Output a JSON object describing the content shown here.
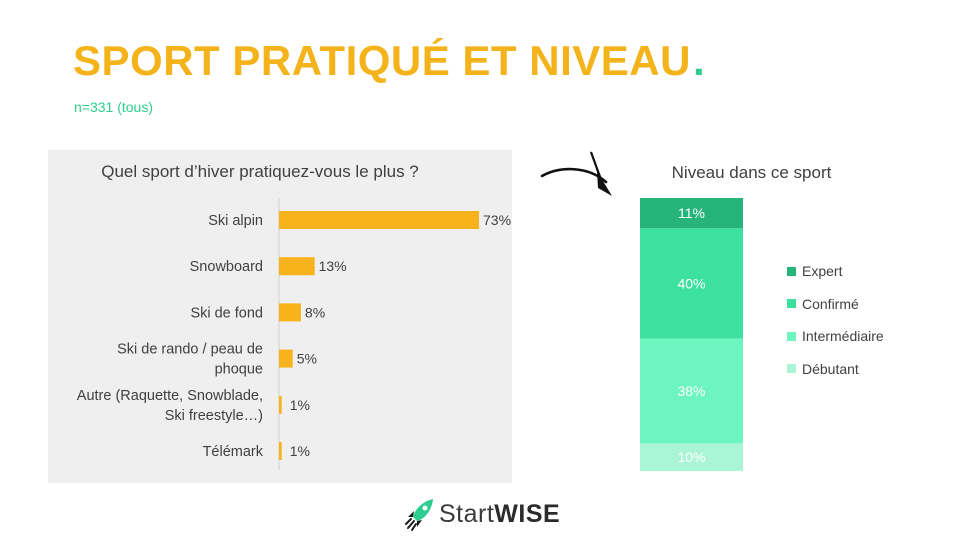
{
  "header": {
    "title": "SPORT PRATIQUÉ ET NIVEAU",
    "title_dot": ".",
    "subtitle": "n=331 (tous)"
  },
  "colors": {
    "accent_yellow": "#f5b31b",
    "accent_green": "#2ecc8f",
    "bar": "#f8b21c",
    "expert": "#27b47b",
    "confirme": "#3de19f",
    "intermediaire": "#6df5bf",
    "debutant": "#aaf5d6"
  },
  "logo": {
    "icon": "rocket-icon",
    "text_light": "Start",
    "text_bold": "WISE"
  },
  "decorations": {
    "arrow": "curved-arrow-icon"
  },
  "chart_data": [
    {
      "type": "bar",
      "orientation": "horizontal",
      "title": "Quel sport d’hiver pratiquez-vous le plus ?",
      "categories": [
        [
          "Ski alpin"
        ],
        [
          "Snowboard"
        ],
        [
          "Ski de fond"
        ],
        [
          "Ski de rando / peau de",
          "phoque"
        ],
        [
          "Autre (Raquette, Snowblade,",
          "Ski freestyle…)"
        ],
        [
          "Télémark"
        ]
      ],
      "values": [
        73,
        13,
        8,
        5,
        1,
        1
      ],
      "value_labels": [
        "73%",
        "13%",
        "8%",
        "5%",
        "1%",
        "1%"
      ],
      "unit": "%",
      "xlim": [
        0,
        73
      ],
      "grid": false
    },
    {
      "type": "bar",
      "stacked": true,
      "title": "Niveau dans ce sport",
      "series": [
        {
          "name": "Expert",
          "values": [
            11
          ],
          "label": "11%"
        },
        {
          "name": "Confirmé",
          "values": [
            40
          ],
          "label": "40%"
        },
        {
          "name": "Intermédiaire",
          "values": [
            38
          ],
          "label": "38%"
        },
        {
          "name": "Débutant",
          "values": [
            10
          ],
          "label": "10%"
        }
      ],
      "unit": "%",
      "legend": "right",
      "grid": false
    }
  ]
}
